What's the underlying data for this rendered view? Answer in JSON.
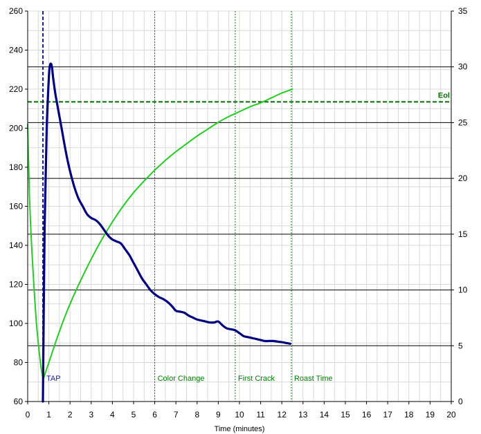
{
  "chart_data": {
    "type": "line",
    "title": "",
    "xlabel": "Time (minutes)",
    "xlim": [
      0,
      20
    ],
    "ylim_left": [
      60,
      260
    ],
    "ylim_right": [
      0,
      35
    ],
    "x_ticks": [
      0,
      1,
      2,
      3,
      4,
      5,
      6,
      7,
      8,
      9,
      10,
      11,
      12,
      13,
      14,
      15,
      16,
      17,
      18,
      19,
      20
    ],
    "y_left_ticks": [
      60,
      80,
      100,
      120,
      140,
      160,
      180,
      200,
      220,
      240,
      260
    ],
    "y_right_ticks": [
      0,
      5,
      10,
      15,
      20,
      25,
      30,
      35
    ],
    "grid": true,
    "colors": {
      "green": "#22cc22",
      "navy": "#000080",
      "event_green": "#008000",
      "tap_blue": "#1a1aa0",
      "eol_green": "#007000",
      "grid_light": "#d8d8d8",
      "grid_dark": "#000000"
    },
    "series": [
      {
        "axis": "left",
        "x": [
          0,
          0.05,
          0.1,
          0.2,
          0.3,
          0.4,
          0.5,
          0.6,
          0.7,
          0.75,
          0.8,
          1.0,
          1.5,
          2.0,
          2.5,
          3.0,
          3.5,
          4.0,
          4.5,
          5.0,
          5.5,
          6.0,
          6.5,
          7.0,
          7.5,
          8.0,
          8.5,
          9.0,
          9.5,
          10.0,
          10.5,
          11.0,
          11.5,
          12.0,
          12.5
        ],
        "y": [
          202,
          180,
          160,
          137,
          118,
          102,
          90,
          80,
          73,
          72,
          73.6,
          80,
          96,
          110,
          122,
          133,
          143,
          152,
          160,
          167,
          173,
          178.5,
          183.5,
          188,
          192,
          196,
          199.5,
          203,
          206,
          208.5,
          211,
          213,
          215.5,
          218,
          220
        ]
      },
      {
        "axis": "left",
        "x": [
          0.72,
          0.8,
          0.9,
          1.0,
          1.05,
          1.1,
          1.15,
          1.2,
          1.3,
          1.4,
          1.6,
          1.8,
          2.0,
          2.2,
          2.4,
          2.6,
          2.8,
          3.0,
          3.2,
          3.4,
          3.6,
          3.8,
          4.0,
          4.2,
          4.4,
          4.6,
          4.8,
          5.0,
          5.2,
          5.4,
          5.6,
          5.8,
          6.0,
          6.2,
          6.4,
          6.6,
          6.8,
          7.0,
          7.2,
          7.4,
          7.6,
          7.8,
          8.0,
          8.2,
          8.4,
          8.6,
          8.8,
          9.0,
          9.2,
          9.4,
          9.6,
          9.8,
          10.0,
          10.2,
          10.4,
          10.6,
          10.8,
          11.0,
          11.2,
          11.4,
          11.6,
          11.8,
          12.0,
          12.2,
          12.4
        ],
        "y": [
          60,
          150,
          200,
          226,
          232,
          233,
          231,
          226,
          218,
          212,
          200,
          188,
          178,
          170,
          164,
          160,
          156,
          154,
          153,
          151,
          148,
          145,
          143,
          142,
          141,
          138,
          135,
          131,
          127,
          123,
          120,
          117,
          115,
          113.5,
          112.5,
          111,
          109,
          106.5,
          106,
          105.5,
          104,
          103,
          102,
          101.5,
          101,
          100.5,
          100.5,
          101,
          99,
          97.5,
          97,
          96.5,
          95,
          93.5,
          93,
          92.5,
          92,
          91.5,
          91,
          91,
          91,
          90.7,
          90.4,
          90,
          89.6
        ]
      }
    ],
    "events": [
      {
        "label": "TAP",
        "x": 0.72
      },
      {
        "label": "Color Change",
        "x": 6.0
      },
      {
        "label": "First Crack",
        "x": 9.8
      },
      {
        "label": "Roast Time",
        "x": 12.45
      }
    ],
    "threshold": {
      "label": "Eol",
      "y": 213.5
    }
  }
}
